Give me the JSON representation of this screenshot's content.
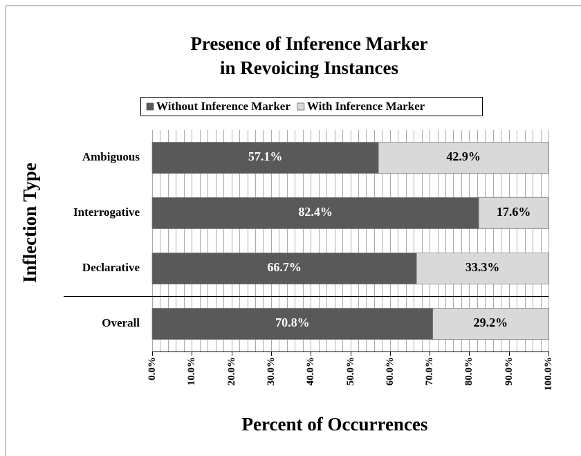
{
  "chart_data": {
    "type": "stacked_barh",
    "title": [
      "Presence of Inference Marker",
      "in Revoicing Instances"
    ],
    "ylabel": "Inflection Type",
    "xlabel": "Percent of Occurrences",
    "categories": [
      "Ambiguous",
      "Interrogative",
      "Declarative",
      "Overall"
    ],
    "series": [
      {
        "name": "Without Inference Marker",
        "color": "#595959",
        "label_color": "#ffffff",
        "values": [
          57.1,
          82.4,
          66.7,
          70.8
        ],
        "value_labels": [
          "57.1%",
          "82.4%",
          "66.7%",
          "70.8%"
        ]
      },
      {
        "name": "With Inference Marker",
        "color": "#d9d9d9",
        "label_color": "#000000",
        "values": [
          42.9,
          17.6,
          33.3,
          29.2
        ],
        "value_labels": [
          "42.9%",
          "17.6%",
          "33.3%",
          "29.2%"
        ]
      }
    ],
    "xlim": [
      0,
      100
    ],
    "xticks": [
      {
        "value": 0,
        "label": "0.0%"
      },
      {
        "value": 10,
        "label": "10.0%"
      },
      {
        "value": 20,
        "label": "20.0%"
      },
      {
        "value": 30,
        "label": "30.0%"
      },
      {
        "value": 40,
        "label": "40.0%"
      },
      {
        "value": 50,
        "label": "50.0%"
      },
      {
        "value": 60,
        "label": "60.0%"
      },
      {
        "value": 70,
        "label": "70.0%"
      },
      {
        "value": 80,
        "label": "80.0%"
      },
      {
        "value": 90,
        "label": "90.0%"
      },
      {
        "value": 100,
        "label": "100.0%"
      }
    ],
    "minor_grid": 2,
    "legend": "top"
  }
}
